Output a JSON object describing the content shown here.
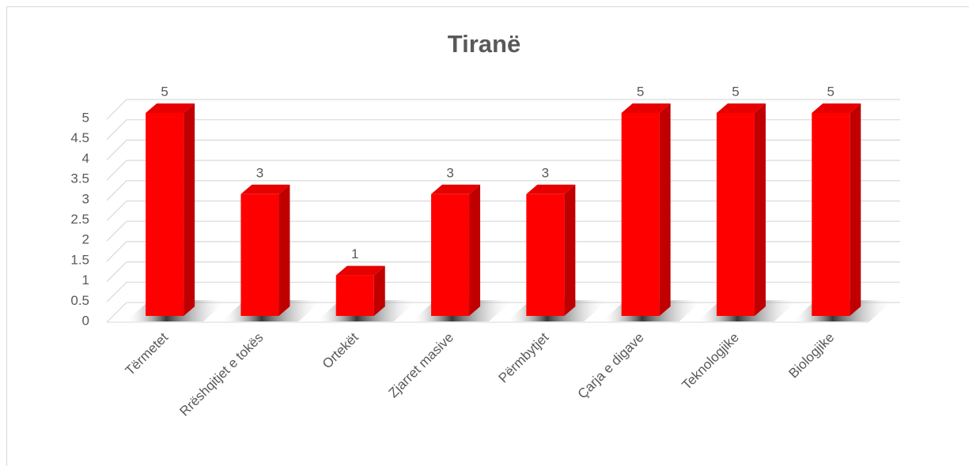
{
  "chart_data": {
    "type": "bar3d",
    "title": "Tiranë",
    "categories": [
      "Tërmetet",
      "Rrëshqitjet e tokës",
      "Ortekët",
      "Zjarret masive",
      "Përmbytjet",
      "Çarja e digave",
      "Teknologjike",
      "Biologjike"
    ],
    "values": [
      5,
      3,
      1,
      3,
      3,
      5,
      5,
      5
    ],
    "color": "#ff0000",
    "ylim": [
      0,
      5
    ],
    "yticks": [
      0,
      0.5,
      1,
      1.5,
      2,
      2.5,
      3,
      3.5,
      4,
      4.5,
      5
    ],
    "grid": true
  }
}
